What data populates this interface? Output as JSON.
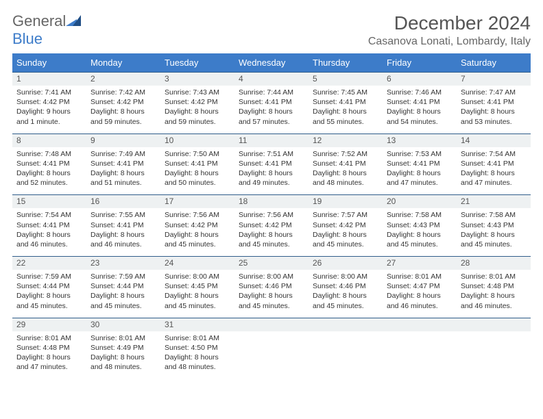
{
  "brand": {
    "general": "General",
    "blue": "Blue"
  },
  "title": "December 2024",
  "location": "Casanova Lonati, Lombardy, Italy",
  "colors": {
    "headerBg": "#3d7cc9",
    "headerText": "#ffffff",
    "dayNumBg": "#eef1f2",
    "borderTopWeek": "#2f5d8a",
    "bodyText": "#333333",
    "pageBg": "#ffffff"
  },
  "typography": {
    "titleFontsize": 28,
    "locationFontsize": 16,
    "headerFontsize": 13,
    "dayNumFontsize": 12,
    "cellFontsize": 10.5
  },
  "weekHeaders": [
    "Sunday",
    "Monday",
    "Tuesday",
    "Wednesday",
    "Thursday",
    "Friday",
    "Saturday"
  ],
  "weeks": [
    [
      {
        "n": "1",
        "sr": "Sunrise: 7:41 AM",
        "ss": "Sunset: 4:42 PM",
        "dl": "Daylight: 9 hours and 1 minute."
      },
      {
        "n": "2",
        "sr": "Sunrise: 7:42 AM",
        "ss": "Sunset: 4:42 PM",
        "dl": "Daylight: 8 hours and 59 minutes."
      },
      {
        "n": "3",
        "sr": "Sunrise: 7:43 AM",
        "ss": "Sunset: 4:42 PM",
        "dl": "Daylight: 8 hours and 59 minutes."
      },
      {
        "n": "4",
        "sr": "Sunrise: 7:44 AM",
        "ss": "Sunset: 4:41 PM",
        "dl": "Daylight: 8 hours and 57 minutes."
      },
      {
        "n": "5",
        "sr": "Sunrise: 7:45 AM",
        "ss": "Sunset: 4:41 PM",
        "dl": "Daylight: 8 hours and 55 minutes."
      },
      {
        "n": "6",
        "sr": "Sunrise: 7:46 AM",
        "ss": "Sunset: 4:41 PM",
        "dl": "Daylight: 8 hours and 54 minutes."
      },
      {
        "n": "7",
        "sr": "Sunrise: 7:47 AM",
        "ss": "Sunset: 4:41 PM",
        "dl": "Daylight: 8 hours and 53 minutes."
      }
    ],
    [
      {
        "n": "8",
        "sr": "Sunrise: 7:48 AM",
        "ss": "Sunset: 4:41 PM",
        "dl": "Daylight: 8 hours and 52 minutes."
      },
      {
        "n": "9",
        "sr": "Sunrise: 7:49 AM",
        "ss": "Sunset: 4:41 PM",
        "dl": "Daylight: 8 hours and 51 minutes."
      },
      {
        "n": "10",
        "sr": "Sunrise: 7:50 AM",
        "ss": "Sunset: 4:41 PM",
        "dl": "Daylight: 8 hours and 50 minutes."
      },
      {
        "n": "11",
        "sr": "Sunrise: 7:51 AM",
        "ss": "Sunset: 4:41 PM",
        "dl": "Daylight: 8 hours and 49 minutes."
      },
      {
        "n": "12",
        "sr": "Sunrise: 7:52 AM",
        "ss": "Sunset: 4:41 PM",
        "dl": "Daylight: 8 hours and 48 minutes."
      },
      {
        "n": "13",
        "sr": "Sunrise: 7:53 AM",
        "ss": "Sunset: 4:41 PM",
        "dl": "Daylight: 8 hours and 47 minutes."
      },
      {
        "n": "14",
        "sr": "Sunrise: 7:54 AM",
        "ss": "Sunset: 4:41 PM",
        "dl": "Daylight: 8 hours and 47 minutes."
      }
    ],
    [
      {
        "n": "15",
        "sr": "Sunrise: 7:54 AM",
        "ss": "Sunset: 4:41 PM",
        "dl": "Daylight: 8 hours and 46 minutes."
      },
      {
        "n": "16",
        "sr": "Sunrise: 7:55 AM",
        "ss": "Sunset: 4:41 PM",
        "dl": "Daylight: 8 hours and 46 minutes."
      },
      {
        "n": "17",
        "sr": "Sunrise: 7:56 AM",
        "ss": "Sunset: 4:42 PM",
        "dl": "Daylight: 8 hours and 45 minutes."
      },
      {
        "n": "18",
        "sr": "Sunrise: 7:56 AM",
        "ss": "Sunset: 4:42 PM",
        "dl": "Daylight: 8 hours and 45 minutes."
      },
      {
        "n": "19",
        "sr": "Sunrise: 7:57 AM",
        "ss": "Sunset: 4:42 PM",
        "dl": "Daylight: 8 hours and 45 minutes."
      },
      {
        "n": "20",
        "sr": "Sunrise: 7:58 AM",
        "ss": "Sunset: 4:43 PM",
        "dl": "Daylight: 8 hours and 45 minutes."
      },
      {
        "n": "21",
        "sr": "Sunrise: 7:58 AM",
        "ss": "Sunset: 4:43 PM",
        "dl": "Daylight: 8 hours and 45 minutes."
      }
    ],
    [
      {
        "n": "22",
        "sr": "Sunrise: 7:59 AM",
        "ss": "Sunset: 4:44 PM",
        "dl": "Daylight: 8 hours and 45 minutes."
      },
      {
        "n": "23",
        "sr": "Sunrise: 7:59 AM",
        "ss": "Sunset: 4:44 PM",
        "dl": "Daylight: 8 hours and 45 minutes."
      },
      {
        "n": "24",
        "sr": "Sunrise: 8:00 AM",
        "ss": "Sunset: 4:45 PM",
        "dl": "Daylight: 8 hours and 45 minutes."
      },
      {
        "n": "25",
        "sr": "Sunrise: 8:00 AM",
        "ss": "Sunset: 4:46 PM",
        "dl": "Daylight: 8 hours and 45 minutes."
      },
      {
        "n": "26",
        "sr": "Sunrise: 8:00 AM",
        "ss": "Sunset: 4:46 PM",
        "dl": "Daylight: 8 hours and 45 minutes."
      },
      {
        "n": "27",
        "sr": "Sunrise: 8:01 AM",
        "ss": "Sunset: 4:47 PM",
        "dl": "Daylight: 8 hours and 46 minutes."
      },
      {
        "n": "28",
        "sr": "Sunrise: 8:01 AM",
        "ss": "Sunset: 4:48 PM",
        "dl": "Daylight: 8 hours and 46 minutes."
      }
    ],
    [
      {
        "n": "29",
        "sr": "Sunrise: 8:01 AM",
        "ss": "Sunset: 4:48 PM",
        "dl": "Daylight: 8 hours and 47 minutes."
      },
      {
        "n": "30",
        "sr": "Sunrise: 8:01 AM",
        "ss": "Sunset: 4:49 PM",
        "dl": "Daylight: 8 hours and 48 minutes."
      },
      {
        "n": "31",
        "sr": "Sunrise: 8:01 AM",
        "ss": "Sunset: 4:50 PM",
        "dl": "Daylight: 8 hours and 48 minutes."
      },
      null,
      null,
      null,
      null
    ]
  ]
}
